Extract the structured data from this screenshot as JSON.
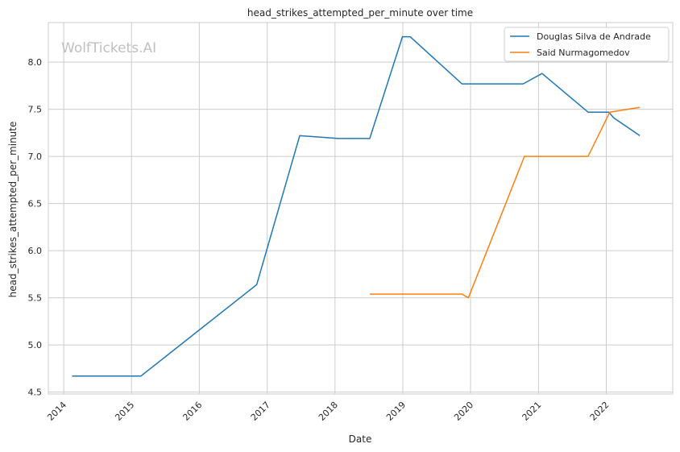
{
  "chart_data": {
    "type": "line",
    "title": "head_strikes_attempted_per_minute over time",
    "xlabel": "Date",
    "ylabel": "head_strikes_attempted_per_minute",
    "watermark": "WolfTickets.AI",
    "grid": true,
    "legend_position": "top-right",
    "xlim": [
      "2013-10-10",
      "2022-12-25"
    ],
    "ylim": [
      4.48,
      8.42
    ],
    "x_ticks": [
      "2014",
      "2015",
      "2016",
      "2017",
      "2018",
      "2019",
      "2020",
      "2021",
      "2022"
    ],
    "y_ticks": [
      "4.5",
      "5.0",
      "5.5",
      "6.0",
      "6.5",
      "7.0",
      "7.5",
      "8.0"
    ],
    "series": [
      {
        "name": "Douglas Silva de Andrade",
        "color": "#1f77b4",
        "points": [
          {
            "x": "2014-02-15",
            "y": 4.67
          },
          {
            "x": "2015-02-20",
            "y": 4.67
          },
          {
            "x": "2016-11-05",
            "y": 5.64
          },
          {
            "x": "2017-06-25",
            "y": 7.22
          },
          {
            "x": "2018-01-20",
            "y": 7.19
          },
          {
            "x": "2018-07-07",
            "y": 7.19
          },
          {
            "x": "2018-12-30",
            "y": 8.27
          },
          {
            "x": "2019-02-10",
            "y": 8.27
          },
          {
            "x": "2019-11-16",
            "y": 7.77
          },
          {
            "x": "2020-10-10",
            "y": 7.77
          },
          {
            "x": "2021-01-20",
            "y": 7.88
          },
          {
            "x": "2021-09-25",
            "y": 7.47
          },
          {
            "x": "2022-01-15",
            "y": 7.47
          },
          {
            "x": "2022-02-10",
            "y": 7.41
          },
          {
            "x": "2022-07-01",
            "y": 7.22
          }
        ]
      },
      {
        "name": "Said Nurmagomedov",
        "color": "#ff7f0e",
        "points": [
          {
            "x": "2018-07-07",
            "y": 5.54
          },
          {
            "x": "2019-11-16",
            "y": 5.54
          },
          {
            "x": "2019-12-20",
            "y": 5.5
          },
          {
            "x": "2020-10-17",
            "y": 7.0
          },
          {
            "x": "2021-09-25",
            "y": 7.0
          },
          {
            "x": "2022-01-20",
            "y": 7.47
          },
          {
            "x": "2022-07-01",
            "y": 7.52
          }
        ]
      }
    ]
  }
}
